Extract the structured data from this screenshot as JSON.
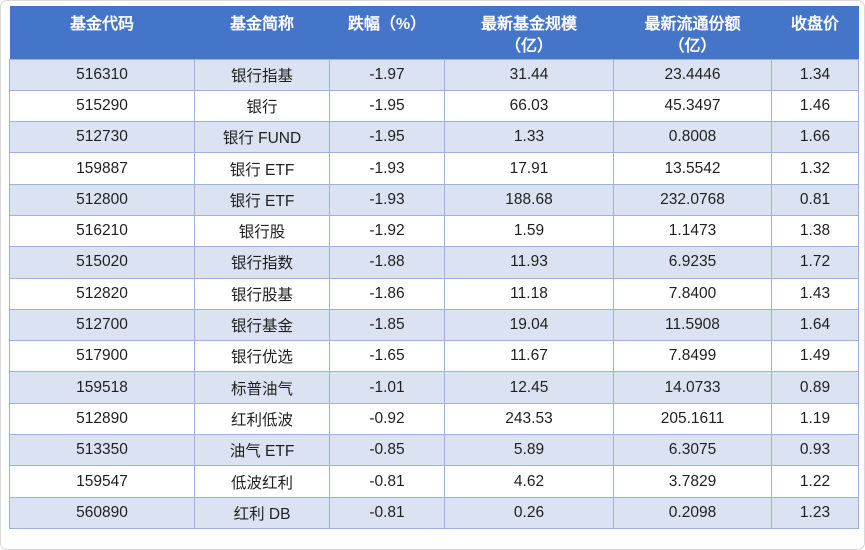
{
  "chart_data": {
    "type": "table",
    "columns": [
      {
        "key": "fund_code",
        "label_lines": [
          "基金代码"
        ]
      },
      {
        "key": "fund_name",
        "label_lines": [
          "基金简称"
        ]
      },
      {
        "key": "drop_pct",
        "label_lines": [
          "跌幅（%）"
        ]
      },
      {
        "key": "fund_scale",
        "label_lines": [
          "最新基金规模",
          "（亿）"
        ]
      },
      {
        "key": "float_shares",
        "label_lines": [
          "最新流通份额",
          "（亿）"
        ]
      },
      {
        "key": "close_price",
        "label_lines": [
          "收盘价"
        ]
      }
    ],
    "rows": [
      [
        "516310",
        "银行指基",
        "-1.97",
        "31.44",
        "23.4446",
        "1.34"
      ],
      [
        "515290",
        "银行",
        "-1.95",
        "66.03",
        "45.3497",
        "1.46"
      ],
      [
        "512730",
        "银行 FUND",
        "-1.95",
        "1.33",
        "0.8008",
        "1.66"
      ],
      [
        "159887",
        "银行 ETF",
        "-1.93",
        "17.91",
        "13.5542",
        "1.32"
      ],
      [
        "512800",
        "银行 ETF",
        "-1.93",
        "188.68",
        "232.0768",
        "0.81"
      ],
      [
        "516210",
        "银行股",
        "-1.92",
        "1.59",
        "1.1473",
        "1.38"
      ],
      [
        "515020",
        "银行指数",
        "-1.88",
        "11.93",
        "6.9235",
        "1.72"
      ],
      [
        "512820",
        "银行股基",
        "-1.86",
        "11.18",
        "7.8400",
        "1.43"
      ],
      [
        "512700",
        "银行基金",
        "-1.85",
        "19.04",
        "11.5908",
        "1.64"
      ],
      [
        "517900",
        "银行优选",
        "-1.65",
        "11.67",
        "7.8499",
        "1.49"
      ],
      [
        "159518",
        "标普油气",
        "-1.01",
        "12.45",
        "14.0733",
        "0.89"
      ],
      [
        "512890",
        "红利低波",
        "-0.92",
        "243.53",
        "205.1611",
        "1.19"
      ],
      [
        "513350",
        "油气 ETF",
        "-0.85",
        "5.89",
        "6.3075",
        "0.93"
      ],
      [
        "159547",
        "低波红利",
        "-0.81",
        "4.62",
        "3.7829",
        "1.22"
      ],
      [
        "560890",
        "红利 DB",
        "-0.81",
        "0.26",
        "0.2098",
        "1.23"
      ]
    ]
  },
  "colors": {
    "header_bg": "#4575C8",
    "header_text": "#FFFFFF",
    "band_bg": "#DBE3F2",
    "row_bg": "#FFFFFF",
    "border": "#9DB2D9",
    "text": "#1F1F1F",
    "page_border": "#D8D8D8"
  }
}
